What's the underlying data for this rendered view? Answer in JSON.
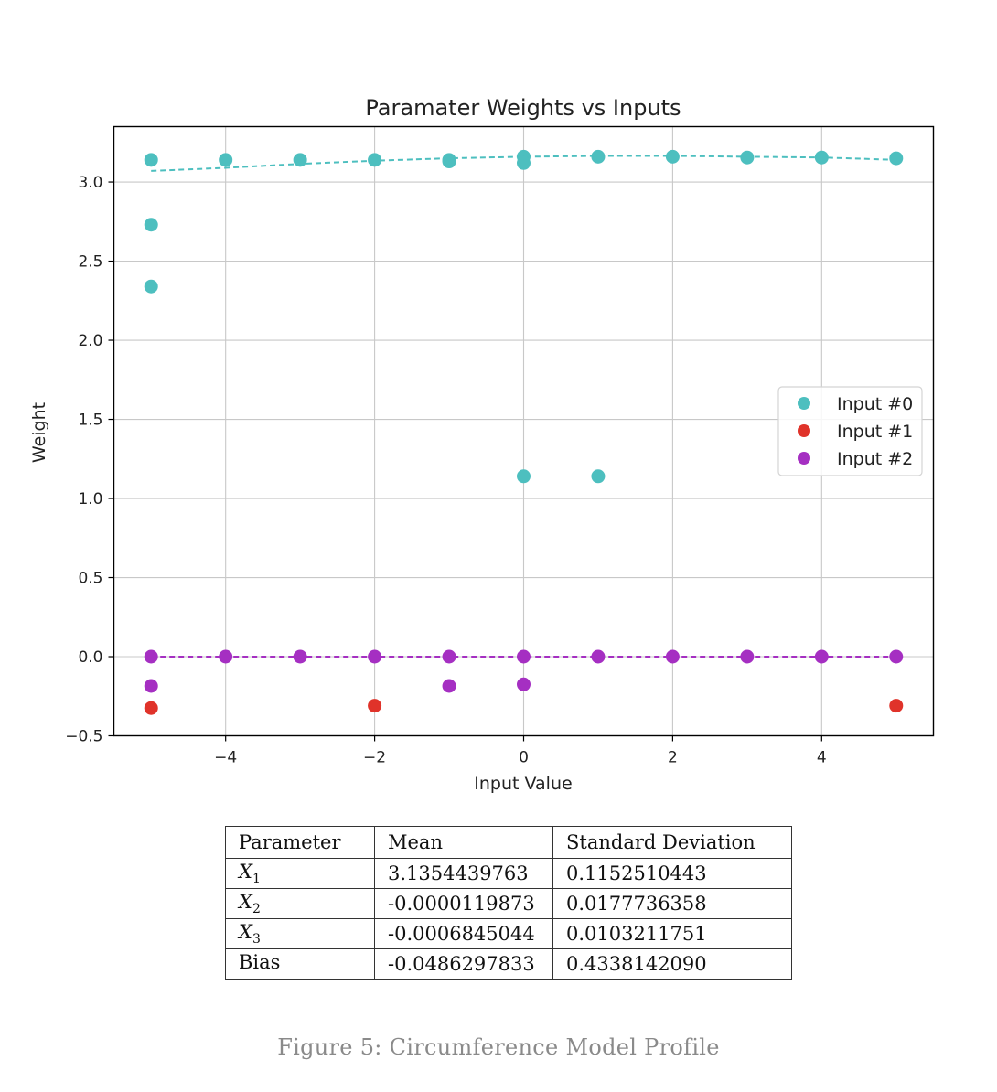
{
  "chart_data": {
    "type": "scatter",
    "title": "Paramater Weights vs Inputs",
    "xlabel": "Input Value",
    "ylabel": "Weight",
    "xlim": [
      -5.5,
      5.5
    ],
    "ylim": [
      -0.5,
      3.35
    ],
    "x_ticks": [
      -4,
      -2,
      0,
      2,
      4
    ],
    "x_tick_labels": [
      "−4",
      "−2",
      "0",
      "2",
      "4"
    ],
    "y_ticks": [
      -0.5,
      0.0,
      0.5,
      1.0,
      1.5,
      2.0,
      2.5,
      3.0
    ],
    "y_tick_labels": [
      "−0.5",
      "0.0",
      "0.5",
      "1.0",
      "1.5",
      "2.0",
      "2.5",
      "3.0"
    ],
    "grid": true,
    "legend_position": "center-right",
    "series": [
      {
        "name": "Input #0",
        "color": "#4dbfbf",
        "points": [
          {
            "x": -5,
            "y": 3.14
          },
          {
            "x": -5,
            "y": 2.73
          },
          {
            "x": -5,
            "y": 2.34
          },
          {
            "x": -4,
            "y": 3.14
          },
          {
            "x": -3,
            "y": 3.14
          },
          {
            "x": -2,
            "y": 3.14
          },
          {
            "x": -1,
            "y": 3.14
          },
          {
            "x": -1,
            "y": 3.13
          },
          {
            "x": 0,
            "y": 3.16
          },
          {
            "x": 0,
            "y": 3.12
          },
          {
            "x": 0,
            "y": 1.14
          },
          {
            "x": 1,
            "y": 3.16
          },
          {
            "x": 1,
            "y": 1.14
          },
          {
            "x": 2,
            "y": 3.16
          },
          {
            "x": 3,
            "y": 3.155
          },
          {
            "x": 4,
            "y": 3.155
          },
          {
            "x": 5,
            "y": 3.15
          }
        ],
        "trend": [
          {
            "x": -5,
            "y": 3.07
          },
          {
            "x": -4,
            "y": 3.09
          },
          {
            "x": -3,
            "y": 3.115
          },
          {
            "x": -2,
            "y": 3.135
          },
          {
            "x": -1,
            "y": 3.15
          },
          {
            "x": 0,
            "y": 3.16
          },
          {
            "x": 1,
            "y": 3.165
          },
          {
            "x": 2,
            "y": 3.165
          },
          {
            "x": 3,
            "y": 3.16
          },
          {
            "x": 4,
            "y": 3.155
          },
          {
            "x": 5,
            "y": 3.14
          }
        ]
      },
      {
        "name": "Input #1",
        "color": "#e0332a",
        "points": [
          {
            "x": -5,
            "y": -0.325
          },
          {
            "x": -2,
            "y": -0.31
          },
          {
            "x": 5,
            "y": -0.31
          }
        ],
        "trend": []
      },
      {
        "name": "Input #2",
        "color": "#a52fc2",
        "points": [
          {
            "x": -5,
            "y": 0.0
          },
          {
            "x": -5,
            "y": -0.185
          },
          {
            "x": -4,
            "y": 0.0
          },
          {
            "x": -3,
            "y": 0.0
          },
          {
            "x": -2,
            "y": 0.0
          },
          {
            "x": -1,
            "y": 0.0
          },
          {
            "x": -1,
            "y": -0.185
          },
          {
            "x": 0,
            "y": 0.0
          },
          {
            "x": 0,
            "y": -0.175
          },
          {
            "x": 1,
            "y": 0.0
          },
          {
            "x": 2,
            "y": 0.0
          },
          {
            "x": 3,
            "y": 0.0
          },
          {
            "x": 4,
            "y": 0.0
          },
          {
            "x": 5,
            "y": 0.0
          }
        ],
        "trend": [
          {
            "x": -5,
            "y": 0.0
          },
          {
            "x": 5,
            "y": 0.0
          }
        ]
      }
    ]
  },
  "table": {
    "headers": [
      "Parameter",
      "Mean",
      "Standard Deviation"
    ],
    "rows": [
      {
        "param_symbol": "X",
        "param_sub": "1",
        "param_text": "",
        "mean": "3.1354439763",
        "std": "0.1152510443"
      },
      {
        "param_symbol": "X",
        "param_sub": "2",
        "param_text": "",
        "mean": "-0.0000119873",
        "std": "0.0177736358"
      },
      {
        "param_symbol": "X",
        "param_sub": "3",
        "param_text": "",
        "mean": "-0.0006845044",
        "std": "0.0103211751"
      },
      {
        "param_symbol": "",
        "param_sub": "",
        "param_text": "Bias",
        "mean": "-0.0486297833",
        "std": "0.4338142090"
      }
    ]
  },
  "caption": "Figure 5: Circumference Model Profile"
}
